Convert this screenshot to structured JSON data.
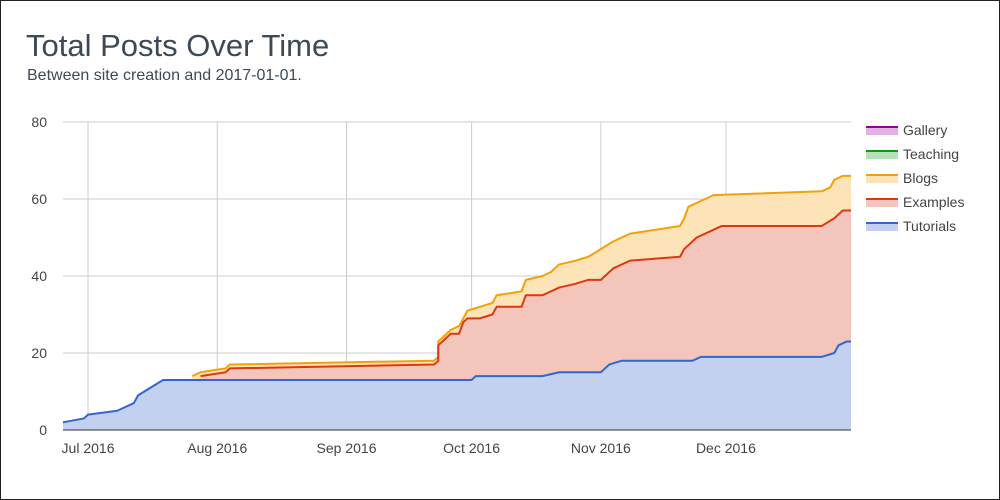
{
  "header": {
    "title": "Total Posts Over Time",
    "subtitle": "Between site creation and 2017-01-01."
  },
  "chart_data": {
    "type": "area",
    "stacked": true,
    "title": "Total Posts Over Time",
    "subtitle": "Between site creation and 2017-01-01.",
    "xlabel": "",
    "ylabel": "",
    "ylim": [
      0,
      80
    ],
    "y_ticks": [
      0,
      20,
      40,
      60,
      80
    ],
    "xlim": [
      "2016-06-25",
      "2016-12-31"
    ],
    "x_ticks": [
      {
        "date": "2016-07-01",
        "label": "Jul 2016"
      },
      {
        "date": "2016-08-01",
        "label": "Aug 2016"
      },
      {
        "date": "2016-09-01",
        "label": "Sep 2016"
      },
      {
        "date": "2016-10-01",
        "label": "Oct 2016"
      },
      {
        "date": "2016-11-01",
        "label": "Nov 2016"
      },
      {
        "date": "2016-12-01",
        "label": "Dec 2016"
      }
    ],
    "grid": true,
    "legend_position": "right",
    "legend_order": [
      "Gallery",
      "Teaching",
      "Blogs",
      "Examples",
      "Tutorials"
    ],
    "series": [
      {
        "name": "Tutorials",
        "line_color": "#3366cc",
        "fill_color": "#c3d0ef",
        "points": [
          [
            "2016-06-25",
            2
          ],
          [
            "2016-06-30",
            3
          ],
          [
            "2016-07-01",
            4
          ],
          [
            "2016-07-08",
            5
          ],
          [
            "2016-07-10",
            6
          ],
          [
            "2016-07-12",
            7
          ],
          [
            "2016-07-13",
            9
          ],
          [
            "2016-07-16",
            11
          ],
          [
            "2016-07-19",
            13
          ],
          [
            "2016-10-01",
            13
          ],
          [
            "2016-10-02",
            14
          ],
          [
            "2016-10-18",
            14
          ],
          [
            "2016-10-22",
            15
          ],
          [
            "2016-11-01",
            15
          ],
          [
            "2016-11-03",
            17
          ],
          [
            "2016-11-06",
            18
          ],
          [
            "2016-11-23",
            18
          ],
          [
            "2016-11-25",
            19
          ],
          [
            "2016-12-24",
            19
          ],
          [
            "2016-12-27",
            20
          ],
          [
            "2016-12-28",
            22
          ],
          [
            "2016-12-30",
            23
          ],
          [
            "2016-12-31",
            23
          ]
        ]
      },
      {
        "name": "Examples",
        "line_color": "#dc3912",
        "fill_color": "#f4c6bb",
        "points": [
          [
            "2016-07-28",
            14
          ],
          [
            "2016-08-03",
            15
          ],
          [
            "2016-08-04",
            16
          ],
          [
            "2016-09-22",
            17
          ],
          [
            "2016-09-23",
            18
          ],
          [
            "2016-09-23",
            22
          ],
          [
            "2016-09-25",
            24
          ],
          [
            "2016-09-26",
            25
          ],
          [
            "2016-09-28",
            25
          ],
          [
            "2016-09-29",
            28
          ],
          [
            "2016-09-30",
            29
          ],
          [
            "2016-10-03",
            29
          ],
          [
            "2016-10-06",
            30
          ],
          [
            "2016-10-07",
            32
          ],
          [
            "2016-10-13",
            32
          ],
          [
            "2016-10-14",
            35
          ],
          [
            "2016-10-18",
            35
          ],
          [
            "2016-10-22",
            37
          ],
          [
            "2016-10-26",
            38
          ],
          [
            "2016-10-29",
            39
          ],
          [
            "2016-11-01",
            39
          ],
          [
            "2016-11-04",
            42
          ],
          [
            "2016-11-08",
            44
          ],
          [
            "2016-11-20",
            45
          ],
          [
            "2016-11-21",
            47
          ],
          [
            "2016-11-22",
            48
          ],
          [
            "2016-11-24",
            50
          ],
          [
            "2016-11-28",
            52
          ],
          [
            "2016-11-30",
            53
          ],
          [
            "2016-12-24",
            53
          ],
          [
            "2016-12-27",
            55
          ],
          [
            "2016-12-29",
            57
          ],
          [
            "2016-12-31",
            57
          ]
        ]
      },
      {
        "name": "Blogs",
        "line_color": "#f1a20b",
        "fill_color": "#fde3b8",
        "points": [
          [
            "2016-07-26",
            14
          ],
          [
            "2016-07-28",
            15
          ],
          [
            "2016-08-03",
            16
          ],
          [
            "2016-08-04",
            17
          ],
          [
            "2016-09-22",
            18
          ],
          [
            "2016-09-23",
            19
          ],
          [
            "2016-09-23",
            23
          ],
          [
            "2016-09-25",
            25
          ],
          [
            "2016-09-26",
            26
          ],
          [
            "2016-09-28",
            27
          ],
          [
            "2016-09-29",
            29
          ],
          [
            "2016-09-30",
            31
          ],
          [
            "2016-10-03",
            32
          ],
          [
            "2016-10-06",
            33
          ],
          [
            "2016-10-07",
            35
          ],
          [
            "2016-10-13",
            36
          ],
          [
            "2016-10-14",
            39
          ],
          [
            "2016-10-18",
            40
          ],
          [
            "2016-10-20",
            41
          ],
          [
            "2016-10-22",
            43
          ],
          [
            "2016-10-26",
            44
          ],
          [
            "2016-10-29",
            45
          ],
          [
            "2016-11-01",
            47
          ],
          [
            "2016-11-04",
            49
          ],
          [
            "2016-11-08",
            51
          ],
          [
            "2016-11-20",
            53
          ],
          [
            "2016-11-21",
            55
          ],
          [
            "2016-11-22",
            58
          ],
          [
            "2016-11-24",
            59
          ],
          [
            "2016-11-28",
            61
          ],
          [
            "2016-12-24",
            62
          ],
          [
            "2016-12-26",
            63
          ],
          [
            "2016-12-27",
            65
          ],
          [
            "2016-12-29",
            66
          ],
          [
            "2016-12-31",
            66
          ]
        ]
      },
      {
        "name": "Teaching",
        "line_color": "#109618",
        "fill_color": "#b6e0b8",
        "points": []
      },
      {
        "name": "Gallery",
        "line_color": "#990099",
        "fill_color": "#e0b3e0",
        "points": []
      }
    ]
  }
}
